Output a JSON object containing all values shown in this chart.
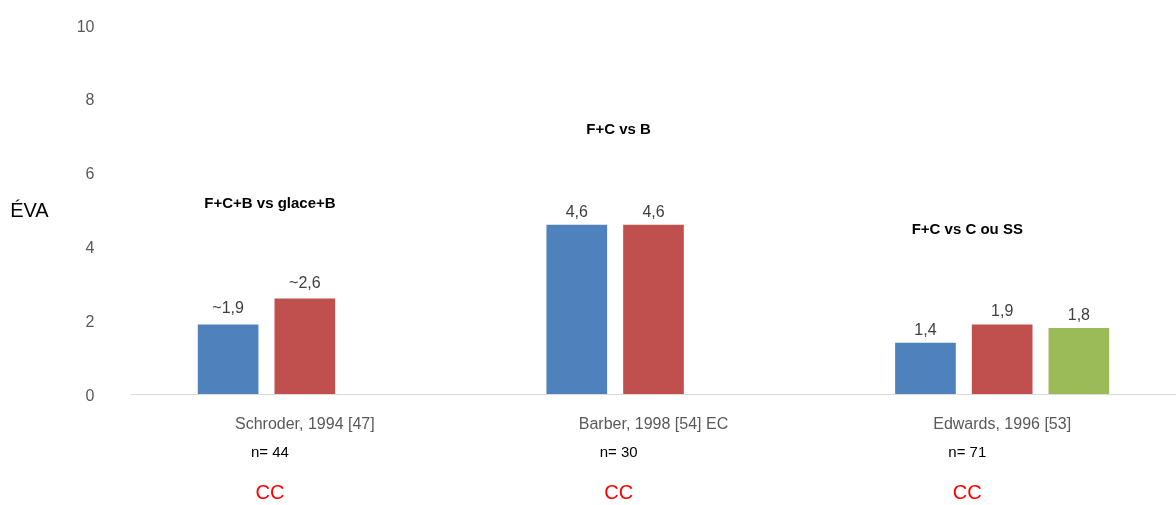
{
  "chart_data": {
    "type": "bar",
    "ylabel": "ÉVA",
    "categories": [
      "Schroder, 1994 [47]",
      "Barber, 1998 [54] EC",
      "Edwards, 1996 [53]"
    ],
    "series": [
      {
        "color": "#4f81bd",
        "values": [
          1.9,
          4.6,
          1.4
        ],
        "value_labels": [
          "~1,9",
          "4,6",
          "1,4"
        ]
      },
      {
        "color": "#c0504d",
        "values": [
          2.6,
          4.6,
          1.9
        ],
        "value_labels": [
          "~2,6",
          "4,6",
          "1,9"
        ]
      },
      {
        "color": "#9bbb59",
        "values": [
          null,
          null,
          1.8
        ],
        "value_labels": [
          null,
          null,
          "1,8"
        ]
      }
    ],
    "ylim": [
      0,
      10
    ],
    "yticks": [
      0,
      2,
      4,
      6,
      8,
      10
    ],
    "grid": false,
    "annotations": [
      "F+C+B vs glace+B",
      "F+C vs B",
      "F+C vs C ou SS",
      "n= 44",
      "n= 30",
      "n= 71",
      "CC",
      "CC",
      "CC"
    ]
  }
}
